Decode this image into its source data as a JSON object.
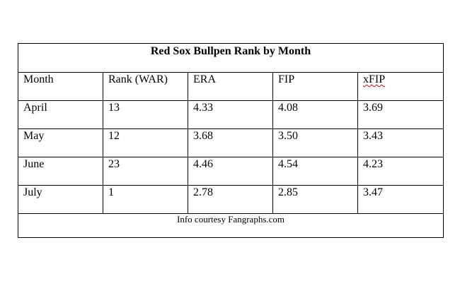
{
  "table": {
    "title": "Red Sox Bullpen Rank by Month",
    "headers": [
      "Month",
      "Rank (WAR)",
      "ERA",
      "FIP",
      "xFIP"
    ],
    "rows": [
      [
        "April",
        "13",
        "4.33",
        "4.08",
        "3.69"
      ],
      [
        "May",
        "12",
        "3.68",
        "3.50",
        "3.43"
      ],
      [
        "June",
        "23",
        "4.46",
        "4.54",
        "4.23"
      ],
      [
        "July",
        "1",
        "2.78",
        "2.85",
        "3.47"
      ]
    ],
    "footer": "Info courtesy Fangraphs.com"
  },
  "colors": {
    "spellcheck_underline": "#d0021b"
  }
}
